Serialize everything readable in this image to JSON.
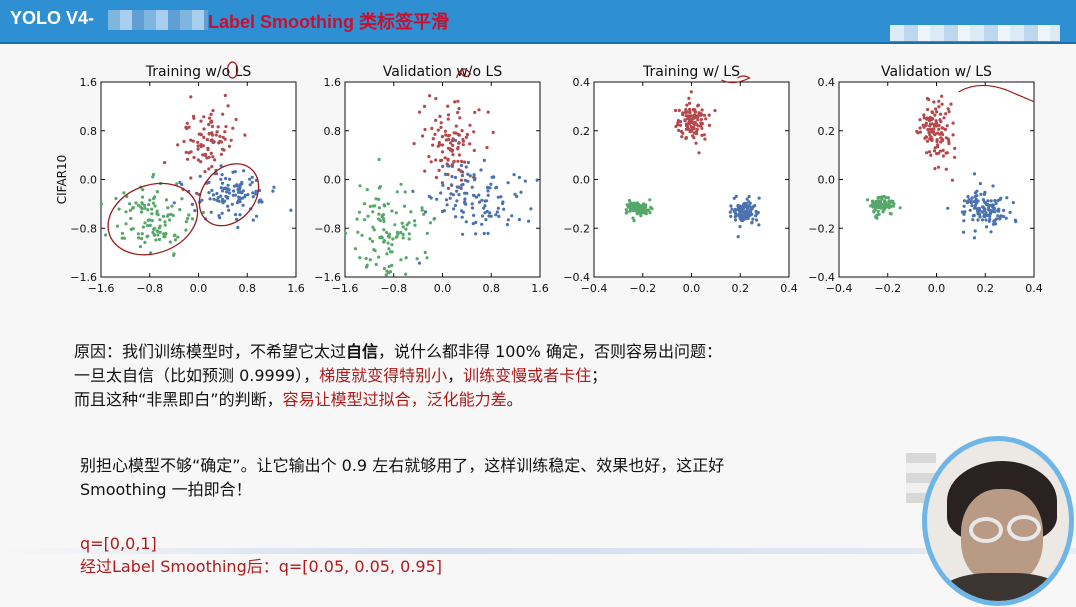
{
  "header": {
    "title_prefix": "YOLO  V4-",
    "title_highlight": "Label Smoothing 类标签平滑",
    "accent_color": "#2f8fd3",
    "highlight_color": "#c8102e"
  },
  "chart_data": [
    {
      "type": "scatter",
      "title": "Training w/o LS",
      "ylabel": "CIFAR10",
      "xlim": [
        -1.6,
        1.6
      ],
      "ylim": [
        -1.6,
        1.6
      ],
      "xticks": [
        "−1.6",
        "−0.8",
        "0.0",
        "0.8",
        "1.6"
      ],
      "yticks": [
        "1.6",
        "0.8",
        "0.0",
        "−0.8",
        "−1.6"
      ],
      "clusters": [
        {
          "color": "#b5484b",
          "cx": 0.15,
          "cy": 0.65,
          "sx": 0.22,
          "sy": 0.3,
          "n": 90
        },
        {
          "color": "#4a72b0",
          "cx": 0.55,
          "cy": -0.25,
          "sx": 0.3,
          "sy": 0.25,
          "n": 110
        },
        {
          "color": "#55a868",
          "cx": -0.8,
          "cy": -0.7,
          "sx": 0.35,
          "sy": 0.28,
          "n": 110
        }
      ]
    },
    {
      "type": "scatter",
      "title": "Validation w/o LS",
      "xlim": [
        -1.6,
        1.6
      ],
      "ylim": [
        -1.6,
        1.6
      ],
      "xticks": [
        "−1.6",
        "−0.8",
        "0.0",
        "0.8",
        "1.6"
      ],
      "yticks": [
        "1.6",
        "0.8",
        "0.0",
        "−0.8",
        "−1.6"
      ],
      "clusters": [
        {
          "color": "#b5484b",
          "cx": 0.15,
          "cy": 0.6,
          "sx": 0.25,
          "sy": 0.35,
          "n": 100
        },
        {
          "color": "#4a72b0",
          "cx": 0.6,
          "cy": -0.35,
          "sx": 0.38,
          "sy": 0.3,
          "n": 120
        },
        {
          "color": "#55a868",
          "cx": -0.9,
          "cy": -0.8,
          "sx": 0.35,
          "sy": 0.35,
          "n": 110
        }
      ]
    },
    {
      "type": "scatter",
      "title": "Training w/ LS",
      "xlim": [
        -0.4,
        0.4
      ],
      "ylim": [
        -0.4,
        0.4
      ],
      "xticks": [
        "−0.4",
        "−0.2",
        "0.0",
        "0.2",
        "0.4"
      ],
      "yticks": [
        "0.4",
        "0.2",
        "0.0",
        "−0.2",
        "−0.4"
      ],
      "clusters": [
        {
          "color": "#b5484b",
          "cx": 0.0,
          "cy": 0.24,
          "sx": 0.03,
          "sy": 0.04,
          "n": 110
        },
        {
          "color": "#4a72b0",
          "cx": 0.22,
          "cy": -0.13,
          "sx": 0.03,
          "sy": 0.03,
          "n": 110
        },
        {
          "color": "#55a868",
          "cx": -0.22,
          "cy": -0.12,
          "sx": 0.025,
          "sy": 0.015,
          "n": 90
        }
      ]
    },
    {
      "type": "scatter",
      "title": "Validation w/ LS",
      "xlim": [
        -0.4,
        0.4
      ],
      "ylim": [
        -0.4,
        0.4
      ],
      "xticks": [
        "−0.4",
        "−0.2",
        "0.0",
        "0.2",
        "0.4"
      ],
      "yticks": [
        "0.4",
        "0.2",
        "0.0",
        "−0.2",
        "−0.4"
      ],
      "clusters": [
        {
          "color": "#b5484b",
          "cx": 0.0,
          "cy": 0.2,
          "sx": 0.035,
          "sy": 0.07,
          "n": 110
        },
        {
          "color": "#4a72b0",
          "cx": 0.2,
          "cy": -0.12,
          "sx": 0.05,
          "sy": 0.04,
          "n": 120
        },
        {
          "color": "#55a868",
          "cx": -0.22,
          "cy": -0.11,
          "sx": 0.03,
          "sy": 0.02,
          "n": 80
        }
      ]
    }
  ],
  "body": {
    "line1_a": "原因：我们训练模型时，不希望它太过",
    "line1_bold": "自信",
    "line1_b": "，说什么都非得 100% 确定，否则容易出问题：",
    "line2_a": "一旦太自信（比如预测 0.9999），",
    "line2_red1": "梯度就变得特别小",
    "line2_sep": "，",
    "line2_red2": "训练变慢或者卡住",
    "line2_end": "；",
    "line3_a": "而且这种“非黑即白”的判断，",
    "line3_red": "容易让模型过拟合，泛化能力差",
    "line3_end": "。",
    "line4": "别担心模型不够“确定”。让它输出个 0.9 左右就够用了，这样训练稳定、效果也好，这正好",
    "line5": "Smoothing 一拍即合！",
    "line6": "q=[0,0,1]",
    "line7": "经过Label Smoothing后：q=[0.05, 0.05, 0.95]"
  }
}
